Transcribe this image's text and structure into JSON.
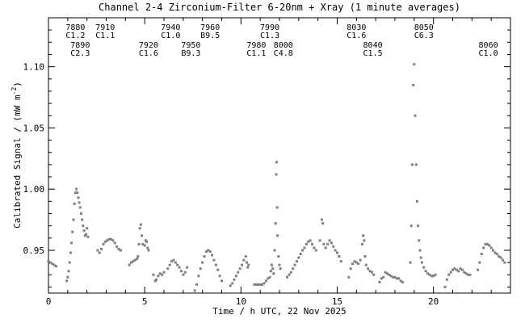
{
  "chart_data": {
    "type": "scatter",
    "title": "Channel 2-4   Zirconium-Filter   6-20nm + Xray   (1 minute averages)",
    "xlabel": "Time / h UTC, 22 Nov 2025",
    "ylabel": "Calibrated Signal / (mW m",
    "ylabel_sup": "-2",
    "ylabel_end": ")",
    "xlim": [
      0,
      24
    ],
    "ylim": [
      0.915,
      1.14
    ],
    "x_ticks": [
      0,
      5,
      10,
      15,
      20
    ],
    "x_tick_labels": [
      "0",
      "5",
      "10",
      "15",
      "20"
    ],
    "y_ticks": [
      0.95,
      1.0,
      1.05,
      1.1
    ],
    "y_tick_labels": [
      "0.95",
      "1.00",
      "1.05",
      "1.10"
    ],
    "flares": [
      {
        "id": "7880",
        "cls": "C1.2",
        "x": 1.4,
        "row": 1
      },
      {
        "id": "7890",
        "cls": "C2.3",
        "x": 1.65,
        "row": 2
      },
      {
        "id": "7910",
        "cls": "C1.1",
        "x": 2.95,
        "row": 1
      },
      {
        "id": "7920",
        "cls": "C1.6",
        "x": 5.2,
        "row": 2
      },
      {
        "id": "7940",
        "cls": "C1.0",
        "x": 6.35,
        "row": 1
      },
      {
        "id": "7950",
        "cls": "B9.3",
        "x": 7.4,
        "row": 2
      },
      {
        "id": "7960",
        "cls": "B9.5",
        "x": 8.4,
        "row": 1
      },
      {
        "id": "7980",
        "cls": "C1.1",
        "x": 10.8,
        "row": 2
      },
      {
        "id": "7990",
        "cls": "C1.3",
        "x": 11.5,
        "row": 1
      },
      {
        "id": "8000",
        "cls": "C4.8",
        "x": 12.2,
        "row": 2
      },
      {
        "id": "8030",
        "cls": "C1.6",
        "x": 16.0,
        "row": 1
      },
      {
        "id": "8040",
        "cls": "C1.5",
        "x": 16.85,
        "row": 2
      },
      {
        "id": "8050",
        "cls": "C6.3",
        "x": 19.5,
        "row": 1
      },
      {
        "id": "8060",
        "cls": "C1.0",
        "x": 22.85,
        "row": 2
      }
    ],
    "series": [
      {
        "color": "#808080",
        "points": [
          [
            0.0,
            0.941
          ],
          [
            0.1,
            0.94
          ],
          [
            0.2,
            0.939
          ],
          [
            0.3,
            0.938
          ],
          [
            0.4,
            0.937
          ],
          [
            0.95,
            0.925
          ],
          [
            1.0,
            0.928
          ],
          [
            1.05,
            0.933
          ],
          [
            1.1,
            0.94
          ],
          [
            1.15,
            0.948
          ],
          [
            1.2,
            0.956
          ],
          [
            1.25,
            0.965
          ],
          [
            1.3,
            0.975
          ],
          [
            1.35,
            0.988
          ],
          [
            1.4,
            0.997
          ],
          [
            1.45,
            1.0
          ],
          [
            1.5,
            0.997
          ],
          [
            1.55,
            0.993
          ],
          [
            1.6,
            0.989
          ],
          [
            1.65,
            0.985
          ],
          [
            1.7,
            0.98
          ],
          [
            1.75,
            0.975
          ],
          [
            1.8,
            0.97
          ],
          [
            1.85,
            0.966
          ],
          [
            1.9,
            0.962
          ],
          [
            1.95,
            0.963
          ],
          [
            2.0,
            0.968
          ],
          [
            2.05,
            0.961
          ],
          [
            2.55,
            0.95
          ],
          [
            2.65,
            0.948
          ],
          [
            2.75,
            0.951
          ],
          [
            2.85,
            0.955
          ],
          [
            2.95,
            0.957
          ],
          [
            3.05,
            0.958
          ],
          [
            3.15,
            0.959
          ],
          [
            3.25,
            0.959
          ],
          [
            3.35,
            0.958
          ],
          [
            3.45,
            0.956
          ],
          [
            3.55,
            0.953
          ],
          [
            3.65,
            0.951
          ],
          [
            3.75,
            0.95
          ],
          [
            4.2,
            0.938
          ],
          [
            4.3,
            0.94
          ],
          [
            4.4,
            0.941
          ],
          [
            4.5,
            0.942
          ],
          [
            4.6,
            0.943
          ],
          [
            4.65,
            0.945
          ],
          [
            4.7,
            0.955
          ],
          [
            4.75,
            0.968
          ],
          [
            4.8,
            0.971
          ],
          [
            4.85,
            0.962
          ],
          [
            4.9,
            0.955
          ],
          [
            5.0,
            0.954
          ],
          [
            5.05,
            0.958
          ],
          [
            5.1,
            0.957
          ],
          [
            5.15,
            0.952
          ],
          [
            5.2,
            0.95
          ],
          [
            5.45,
            0.93
          ],
          [
            5.55,
            0.925
          ],
          [
            5.6,
            0.926
          ],
          [
            5.7,
            0.929
          ],
          [
            5.8,
            0.931
          ],
          [
            5.9,
            0.93
          ],
          [
            6.0,
            0.932
          ],
          [
            6.2,
            0.935
          ],
          [
            6.3,
            0.938
          ],
          [
            6.4,
            0.941
          ],
          [
            6.5,
            0.942
          ],
          [
            6.6,
            0.94
          ],
          [
            6.7,
            0.938
          ],
          [
            6.8,
            0.936
          ],
          [
            6.9,
            0.933
          ],
          [
            7.0,
            0.93
          ],
          [
            7.1,
            0.932
          ],
          [
            7.2,
            0.936
          ],
          [
            7.6,
            0.917
          ],
          [
            7.7,
            0.922
          ],
          [
            7.8,
            0.929
          ],
          [
            7.9,
            0.935
          ],
          [
            8.0,
            0.94
          ],
          [
            8.1,
            0.945
          ],
          [
            8.2,
            0.949
          ],
          [
            8.3,
            0.95
          ],
          [
            8.4,
            0.949
          ],
          [
            8.5,
            0.946
          ],
          [
            8.6,
            0.942
          ],
          [
            8.7,
            0.938
          ],
          [
            8.8,
            0.934
          ],
          [
            8.9,
            0.929
          ],
          [
            9.0,
            0.925
          ],
          [
            9.45,
            0.921
          ],
          [
            9.55,
            0.923
          ],
          [
            9.65,
            0.926
          ],
          [
            9.75,
            0.929
          ],
          [
            9.85,
            0.932
          ],
          [
            9.95,
            0.935
          ],
          [
            10.05,
            0.938
          ],
          [
            10.15,
            0.942
          ],
          [
            10.25,
            0.945
          ],
          [
            10.3,
            0.94
          ],
          [
            10.35,
            0.936
          ],
          [
            10.4,
            0.938
          ],
          [
            10.7,
            0.922
          ],
          [
            10.8,
            0.922
          ],
          [
            10.9,
            0.922
          ],
          [
            11.0,
            0.922
          ],
          [
            11.1,
            0.922
          ],
          [
            11.2,
            0.923
          ],
          [
            11.3,
            0.925
          ],
          [
            11.4,
            0.927
          ],
          [
            11.5,
            0.928
          ],
          [
            11.55,
            0.933
          ],
          [
            11.6,
            0.938
          ],
          [
            11.65,
            0.935
          ],
          [
            11.7,
            0.931
          ],
          [
            11.75,
            0.95
          ],
          [
            11.8,
            0.972
          ],
          [
            11.83,
            1.012
          ],
          [
            11.85,
            1.022
          ],
          [
            11.88,
            0.985
          ],
          [
            11.9,
            0.962
          ],
          [
            11.95,
            0.945
          ],
          [
            12.0,
            0.938
          ],
          [
            12.05,
            0.935
          ],
          [
            12.4,
            0.928
          ],
          [
            12.5,
            0.93
          ],
          [
            12.6,
            0.932
          ],
          [
            12.7,
            0.935
          ],
          [
            12.8,
            0.938
          ],
          [
            12.9,
            0.941
          ],
          [
            13.0,
            0.944
          ],
          [
            13.1,
            0.947
          ],
          [
            13.2,
            0.95
          ],
          [
            13.3,
            0.952
          ],
          [
            13.4,
            0.955
          ],
          [
            13.5,
            0.957
          ],
          [
            13.6,
            0.958
          ],
          [
            13.7,
            0.955
          ],
          [
            13.8,
            0.952
          ],
          [
            13.9,
            0.95
          ],
          [
            14.1,
            0.958
          ],
          [
            14.2,
            0.975
          ],
          [
            14.25,
            0.972
          ],
          [
            14.3,
            0.955
          ],
          [
            14.4,
            0.952
          ],
          [
            14.5,
            0.955
          ],
          [
            14.6,
            0.958
          ],
          [
            14.7,
            0.956
          ],
          [
            14.8,
            0.953
          ],
          [
            14.9,
            0.95
          ],
          [
            15.0,
            0.948
          ],
          [
            15.1,
            0.945
          ],
          [
            15.2,
            0.941
          ],
          [
            15.6,
            0.928
          ],
          [
            15.7,
            0.935
          ],
          [
            15.8,
            0.939
          ],
          [
            15.9,
            0.941
          ],
          [
            16.0,
            0.94
          ],
          [
            16.1,
            0.939
          ],
          [
            16.2,
            0.942
          ],
          [
            16.3,
            0.955
          ],
          [
            16.35,
            0.962
          ],
          [
            16.4,
            0.958
          ],
          [
            16.45,
            0.945
          ],
          [
            16.5,
            0.938
          ],
          [
            16.6,
            0.935
          ],
          [
            16.7,
            0.933
          ],
          [
            16.8,
            0.932
          ],
          [
            16.9,
            0.93
          ],
          [
            17.2,
            0.924
          ],
          [
            17.3,
            0.927
          ],
          [
            17.4,
            0.928
          ],
          [
            17.5,
            0.932
          ],
          [
            17.6,
            0.931
          ],
          [
            17.7,
            0.93
          ],
          [
            17.8,
            0.929
          ],
          [
            17.9,
            0.928
          ],
          [
            18.0,
            0.928
          ],
          [
            18.1,
            0.927
          ],
          [
            18.2,
            0.927
          ],
          [
            18.3,
            0.925
          ],
          [
            18.4,
            0.924
          ],
          [
            18.8,
            0.94
          ],
          [
            18.85,
            0.97
          ],
          [
            18.9,
            1.02
          ],
          [
            18.95,
            1.085
          ],
          [
            19.0,
            1.102
          ],
          [
            19.05,
            1.06
          ],
          [
            19.1,
            1.02
          ],
          [
            19.15,
            0.99
          ],
          [
            19.2,
            0.97
          ],
          [
            19.25,
            0.958
          ],
          [
            19.3,
            0.95
          ],
          [
            19.35,
            0.944
          ],
          [
            19.4,
            0.94
          ],
          [
            19.5,
            0.936
          ],
          [
            19.6,
            0.933
          ],
          [
            19.7,
            0.931
          ],
          [
            19.8,
            0.93
          ],
          [
            19.9,
            0.929
          ],
          [
            20.0,
            0.929
          ],
          [
            20.1,
            0.93
          ],
          [
            20.6,
            0.92
          ],
          [
            20.7,
            0.926
          ],
          [
            20.8,
            0.93
          ],
          [
            20.9,
            0.932
          ],
          [
            21.0,
            0.934
          ],
          [
            21.1,
            0.935
          ],
          [
            21.2,
            0.934
          ],
          [
            21.3,
            0.933
          ],
          [
            21.4,
            0.935
          ],
          [
            21.5,
            0.934
          ],
          [
            21.6,
            0.932
          ],
          [
            21.7,
            0.931
          ],
          [
            21.8,
            0.93
          ],
          [
            21.9,
            0.93
          ],
          [
            22.3,
            0.934
          ],
          [
            22.4,
            0.94
          ],
          [
            22.5,
            0.947
          ],
          [
            22.6,
            0.952
          ],
          [
            22.7,
            0.955
          ],
          [
            22.8,
            0.955
          ],
          [
            22.9,
            0.954
          ],
          [
            23.0,
            0.952
          ],
          [
            23.1,
            0.95
          ],
          [
            23.2,
            0.948
          ],
          [
            23.3,
            0.947
          ],
          [
            23.4,
            0.945
          ],
          [
            23.5,
            0.944
          ],
          [
            23.6,
            0.942
          ],
          [
            23.7,
            0.94
          ]
        ]
      }
    ]
  }
}
